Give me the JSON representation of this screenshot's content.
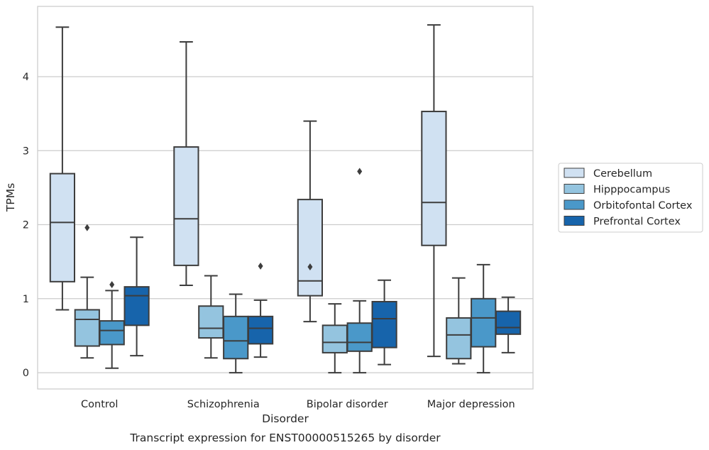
{
  "chart_data": {
    "type": "box",
    "caption": "Transcript expression for ENST00000515265 by disorder",
    "xlabel": "Disorder",
    "ylabel": "TPMs",
    "ylim": [
      -0.22,
      4.95
    ],
    "yticks": [
      0,
      1,
      2,
      3,
      4
    ],
    "grid": "horizontal",
    "legend_position": "right",
    "categories": [
      "Control",
      "Schizophrenia",
      "Bipolar disorder",
      "Major depression"
    ],
    "series": [
      {
        "name": "Cerebellum",
        "color": "#d0e1f2",
        "boxes": [
          {
            "whisker_low": 0.85,
            "q1": 1.23,
            "median": 2.03,
            "q3": 2.69,
            "whisker_high": 4.67,
            "outliers": []
          },
          {
            "whisker_low": 1.18,
            "q1": 1.45,
            "median": 2.08,
            "q3": 3.05,
            "whisker_high": 4.47,
            "outliers": []
          },
          {
            "whisker_low": 0.69,
            "q1": 1.04,
            "median": 1.24,
            "q3": 2.34,
            "whisker_high": 3.4,
            "outliers": [
              1.43
            ]
          },
          {
            "whisker_low": 0.22,
            "q1": 1.72,
            "median": 2.3,
            "q3": 3.53,
            "whisker_high": 4.7,
            "outliers": []
          }
        ]
      },
      {
        "name": "Hipppocampus",
        "color": "#94c4df",
        "boxes": [
          {
            "whisker_low": 0.2,
            "q1": 0.36,
            "median": 0.72,
            "q3": 0.85,
            "whisker_high": 1.29,
            "outliers": [
              1.96
            ]
          },
          {
            "whisker_low": 0.2,
            "q1": 0.47,
            "median": 0.6,
            "q3": 0.9,
            "whisker_high": 1.31,
            "outliers": []
          },
          {
            "whisker_low": 0.0,
            "q1": 0.27,
            "median": 0.41,
            "q3": 0.64,
            "whisker_high": 0.93,
            "outliers": []
          },
          {
            "whisker_low": 0.12,
            "q1": 0.19,
            "median": 0.51,
            "q3": 0.74,
            "whisker_high": 1.28,
            "outliers": []
          }
        ]
      },
      {
        "name": "Orbitofontal Cortex",
        "color": "#4a98c9",
        "boxes": [
          {
            "whisker_low": 0.06,
            "q1": 0.38,
            "median": 0.57,
            "q3": 0.7,
            "whisker_high": 1.11,
            "outliers": [
              1.19
            ]
          },
          {
            "whisker_low": 0.0,
            "q1": 0.19,
            "median": 0.43,
            "q3": 0.76,
            "whisker_high": 1.06,
            "outliers": []
          },
          {
            "whisker_low": 0.0,
            "q1": 0.29,
            "median": 0.41,
            "q3": 0.67,
            "whisker_high": 0.97,
            "outliers": [
              2.72
            ]
          },
          {
            "whisker_low": 0.0,
            "q1": 0.35,
            "median": 0.74,
            "q3": 1.0,
            "whisker_high": 1.46,
            "outliers": []
          }
        ]
      },
      {
        "name": "Prefrontal Cortex",
        "color": "#1764ab",
        "boxes": [
          {
            "whisker_low": 0.23,
            "q1": 0.64,
            "median": 1.04,
            "q3": 1.16,
            "whisker_high": 1.83,
            "outliers": []
          },
          {
            "whisker_low": 0.21,
            "q1": 0.39,
            "median": 0.6,
            "q3": 0.76,
            "whisker_high": 0.98,
            "outliers": [
              1.44
            ]
          },
          {
            "whisker_low": 0.11,
            "q1": 0.34,
            "median": 0.73,
            "q3": 0.96,
            "whisker_high": 1.25,
            "outliers": []
          },
          {
            "whisker_low": 0.27,
            "q1": 0.52,
            "median": 0.61,
            "q3": 0.83,
            "whisker_high": 1.02,
            "outliers": []
          }
        ]
      }
    ]
  }
}
